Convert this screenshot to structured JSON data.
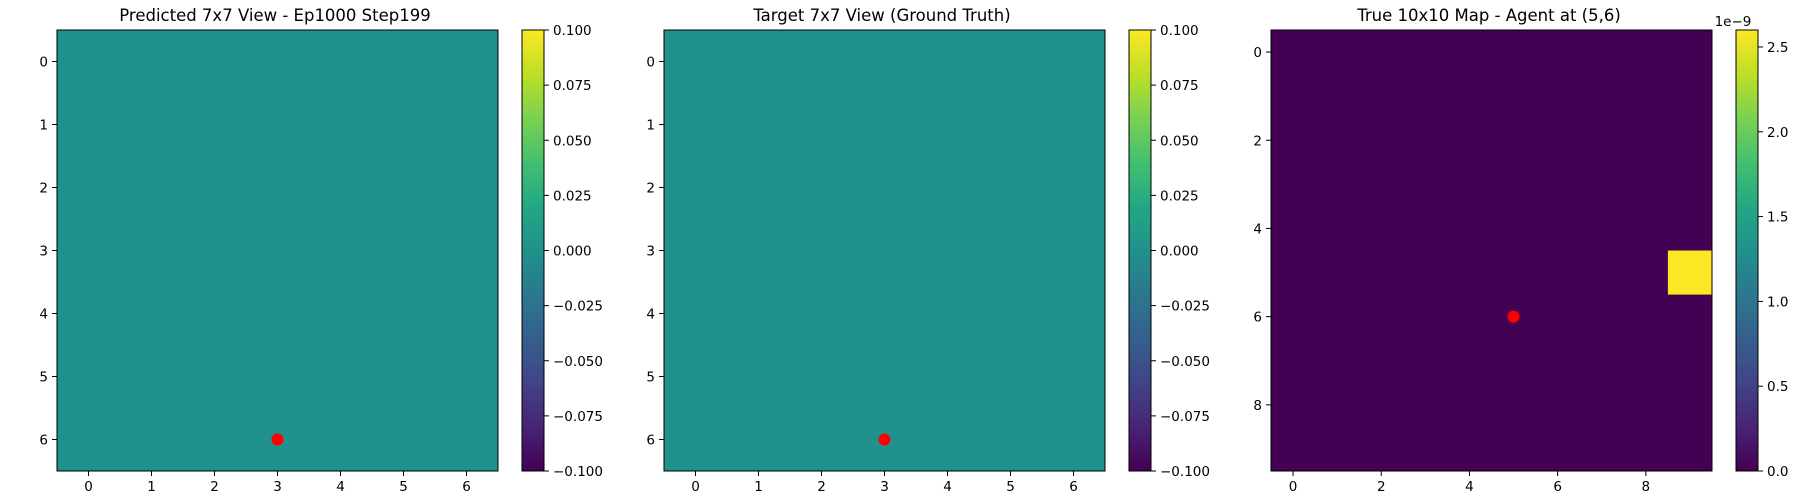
{
  "chart_data": [
    {
      "type": "heatmap",
      "title": "Predicted 7x7 View - Ep1000 Step199",
      "grid_size": 7,
      "xticks": [
        "0",
        "1",
        "2",
        "3",
        "4",
        "5",
        "6"
      ],
      "yticks": [
        "0",
        "1",
        "2",
        "3",
        "4",
        "5",
        "6"
      ],
      "cells": [],
      "background_value": 0.0,
      "cell_color": "#21918c",
      "marker": {
        "x": 3,
        "y": 6,
        "color": "#ff0000"
      },
      "colorbar": {
        "vmin": -0.1,
        "vmax": 0.1,
        "ticks": [
          0.1,
          0.075,
          0.05,
          0.025,
          0.0,
          -0.025,
          -0.05,
          -0.075,
          -0.1
        ],
        "tick_labels": [
          "0.100",
          "0.075",
          "0.050",
          "0.025",
          "0.000",
          "−0.025",
          "−0.050",
          "−0.075",
          "−0.100"
        ],
        "offset_label": ""
      }
    },
    {
      "type": "heatmap",
      "title": "Target 7x7 View (Ground Truth)",
      "grid_size": 7,
      "xticks": [
        "0",
        "1",
        "2",
        "3",
        "4",
        "5",
        "6"
      ],
      "yticks": [
        "0",
        "1",
        "2",
        "3",
        "4",
        "5",
        "6"
      ],
      "cells": [],
      "background_value": 0.0,
      "cell_color": "#21918c",
      "marker": {
        "x": 3,
        "y": 6,
        "color": "#ff0000"
      },
      "colorbar": {
        "vmin": -0.1,
        "vmax": 0.1,
        "ticks": [
          0.1,
          0.075,
          0.05,
          0.025,
          0.0,
          -0.025,
          -0.05,
          -0.075,
          -0.1
        ],
        "tick_labels": [
          "0.100",
          "0.075",
          "0.050",
          "0.025",
          "0.000",
          "−0.025",
          "−0.050",
          "−0.075",
          "−0.100"
        ],
        "offset_label": ""
      }
    },
    {
      "type": "heatmap",
      "title": "True 10x10 Map - Agent at (5,6)",
      "grid_size": 10,
      "xticks": [
        "0",
        "2",
        "4",
        "6",
        "8"
      ],
      "yticks": [
        "0",
        "2",
        "4",
        "6",
        "8"
      ],
      "cells": [
        {
          "x": 9,
          "y": 5,
          "value": 2.5e-09,
          "color": "#fde725"
        }
      ],
      "background_value": 0.0,
      "cell_color": "#440154",
      "marker": {
        "x": 5,
        "y": 6,
        "color": "#ff0000"
      },
      "colorbar": {
        "vmin": 0.0,
        "vmax": 2.6e-09,
        "ticks": [
          2.5,
          2.0,
          1.5,
          1.0,
          0.5,
          0.0
        ],
        "tick_labels": [
          "2.5",
          "2.0",
          "1.5",
          "1.0",
          "0.5",
          "0.0"
        ],
        "offset_label": "1e−9"
      }
    }
  ]
}
